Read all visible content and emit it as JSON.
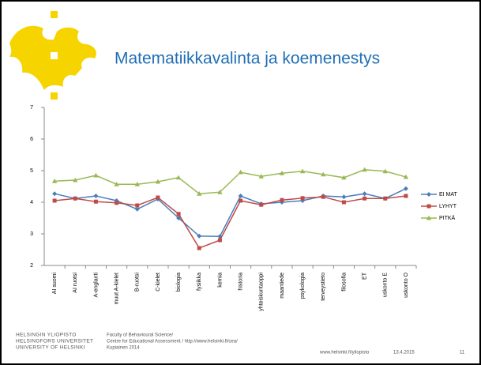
{
  "title": "Matematiikkavalinta ja koemenestys",
  "chart_data": {
    "type": "line",
    "categories": [
      "AI suomi",
      "AI ruotsi",
      "A-englanti",
      "muut A-kielet",
      "B-ruotsi",
      "C-kielet",
      "biologia",
      "fysiikka",
      "kemia",
      "historia",
      "yhteiskuntaoppi",
      "maantiede",
      "psykologia",
      "terveystieto",
      "filosofia",
      "ET",
      "uskonto E",
      "uskonto O"
    ],
    "series": [
      {
        "name": "EI MAT",
        "color": "#4a7ebb",
        "marker": "diamond",
        "values": [
          4.27,
          4.12,
          4.2,
          4.05,
          3.78,
          4.1,
          3.5,
          2.93,
          2.92,
          4.2,
          3.95,
          4.0,
          4.05,
          4.2,
          4.17,
          4.27,
          4.12,
          4.43
        ]
      },
      {
        "name": "LYHYT",
        "color": "#be4b48",
        "marker": "square",
        "values": [
          4.05,
          4.12,
          4.02,
          3.98,
          3.9,
          4.15,
          3.63,
          2.55,
          2.8,
          4.05,
          3.92,
          4.07,
          4.13,
          4.17,
          4.0,
          4.12,
          4.12,
          4.2
        ]
      },
      {
        "name": "PITKÄ",
        "color": "#98b954",
        "marker": "triangle",
        "values": [
          4.67,
          4.7,
          4.85,
          4.57,
          4.57,
          4.65,
          4.78,
          4.27,
          4.32,
          4.95,
          4.82,
          4.92,
          4.98,
          4.88,
          4.78,
          5.03,
          4.98,
          4.8
        ]
      }
    ],
    "ylim": [
      2,
      7
    ],
    "yticks": [
      2,
      3,
      4,
      5,
      6,
      7
    ],
    "grid": false,
    "legend": "right"
  },
  "footer": {
    "university": [
      "HELSINGIN YLIOPISTO",
      "HELSINGFORS UNIVERSITET",
      "UNIVERSITY OF HELSINKI"
    ],
    "credits": [
      "Faculty of Behavioural Science/",
      "Centre for Educational Assessment / http://www.helsinki.fi/cea/",
      "Kupiainen 2014"
    ],
    "url": "www.helsinki.fi/yliopisto",
    "date": "13.4.2015",
    "page": "11"
  }
}
